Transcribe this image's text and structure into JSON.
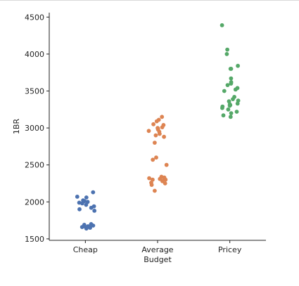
{
  "chart_data": {
    "type": "scatter",
    "style": "strip",
    "xlabel": "Budget",
    "ylabel": "1BR",
    "categories": [
      "Cheap",
      "Average",
      "Pricey"
    ],
    "ylim": [
      1480,
      4560
    ],
    "yticks": [
      1500,
      2000,
      2500,
      3000,
      3500,
      4000,
      4500
    ],
    "grid": false,
    "colors": [
      "#4c72b0",
      "#dd8452",
      "#55a868"
    ],
    "series": [
      {
        "category": "Cheap",
        "values": [
          2130,
          2070,
          2060,
          2020,
          2010,
          2000,
          1990,
          1980,
          1960,
          1940,
          1920,
          1900,
          1880,
          1700,
          1690,
          1680,
          1670,
          1670,
          1660,
          1650,
          1640
        ]
      },
      {
        "category": "Average",
        "values": [
          3150,
          3110,
          3090,
          3050,
          3040,
          3010,
          3000,
          2990,
          2980,
          2960,
          2950,
          2920,
          2900,
          2880,
          2800,
          2600,
          2570,
          2500,
          2340,
          2330,
          2320,
          2320,
          2310,
          2300,
          2300,
          2280,
          2260,
          2250,
          2230,
          2150
        ]
      },
      {
        "category": "Pricey",
        "values": [
          4390,
          4060,
          4000,
          3840,
          3800,
          3800,
          3670,
          3620,
          3600,
          3580,
          3540,
          3520,
          3500,
          3420,
          3390,
          3370,
          3360,
          3330,
          3320,
          3310,
          3300,
          3290,
          3270,
          3250,
          3220,
          3200,
          3170,
          3150
        ]
      }
    ]
  }
}
